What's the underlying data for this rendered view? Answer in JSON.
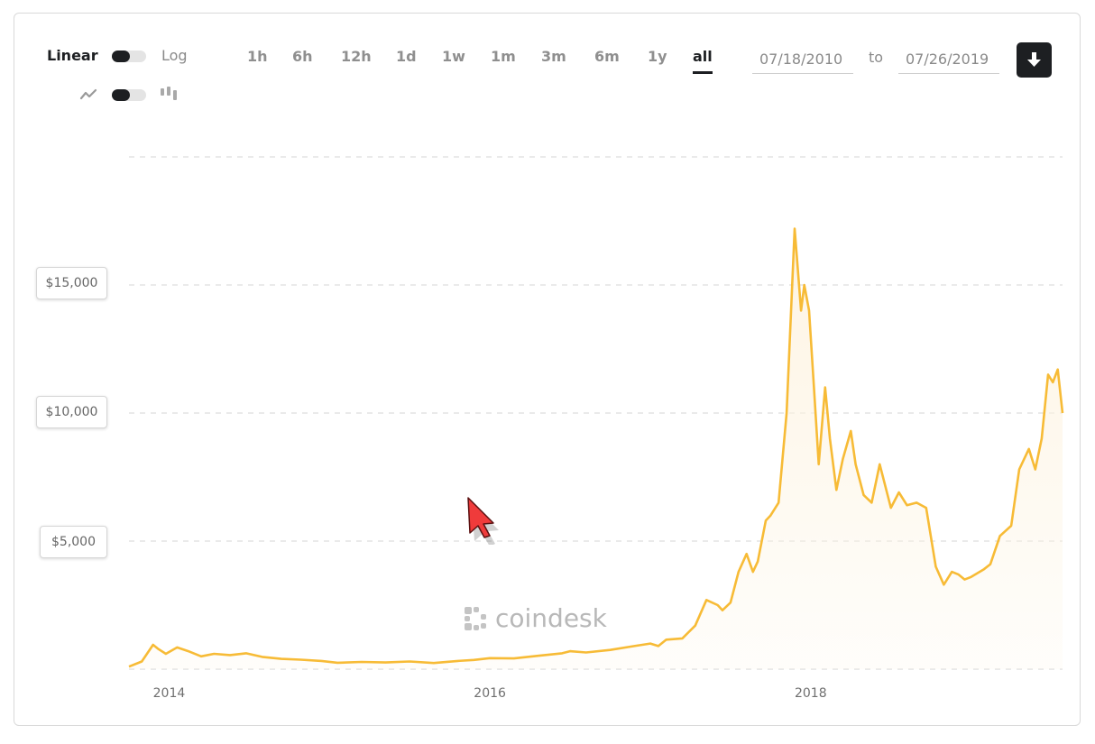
{
  "controls": {
    "scale_linear": "Linear",
    "scale_log": "Log",
    "ranges": [
      "1h",
      "6h",
      "12h",
      "1d",
      "1w",
      "1m",
      "3m",
      "6m",
      "1y",
      "all"
    ],
    "active_range": "all",
    "date_from": "07/18/2010",
    "to_label": "to",
    "date_to": "07/26/2019"
  },
  "watermark": "coindesk",
  "colors": {
    "line": "#f7bb36",
    "fill": "#fdf3e0",
    "text": "#1d1f22"
  },
  "chart_data": {
    "type": "area",
    "title": "",
    "xlabel": "",
    "ylabel": "",
    "x_ticks": [
      "2014",
      "2016",
      "2018"
    ],
    "y_ticks": [
      "$5,000",
      "$10,000",
      "$15,000"
    ],
    "y_tick_values": [
      5000,
      10000,
      15000
    ],
    "ylim": [
      0,
      20000
    ],
    "xlim": [
      2013.75,
      2019.57
    ],
    "grid": true,
    "series": [
      {
        "x": [
          2013.75,
          2013.83,
          2013.9,
          2013.93,
          2013.98,
          2014.05,
          2014.12,
          2014.2,
          2014.28,
          2014.38,
          2014.48,
          2014.58,
          2014.7,
          2014.82,
          2014.95,
          2015.05,
          2015.2,
          2015.35,
          2015.5,
          2015.65,
          2015.8,
          2015.9,
          2016.0,
          2016.15,
          2016.3,
          2016.45,
          2016.5,
          2016.6,
          2016.75,
          2016.9,
          2017.0,
          2017.05,
          2017.1,
          2017.2,
          2017.28,
          2017.35,
          2017.42,
          2017.45,
          2017.5,
          2017.55,
          2017.6,
          2017.64,
          2017.67,
          2017.72,
          2017.75,
          2017.8,
          2017.85,
          2017.9,
          2017.94,
          2017.96,
          2017.99,
          2018.02,
          2018.05,
          2018.09,
          2018.12,
          2018.16,
          2018.2,
          2018.25,
          2018.28,
          2018.33,
          2018.38,
          2018.43,
          2018.5,
          2018.55,
          2018.6,
          2018.66,
          2018.72,
          2018.78,
          2018.83,
          2018.88,
          2018.92,
          2018.96,
          2019.0,
          2019.08,
          2019.12,
          2019.18,
          2019.25,
          2019.3,
          2019.36,
          2019.4,
          2019.44,
          2019.48,
          2019.51,
          2019.54,
          2019.57
        ],
        "y": [
          100,
          300,
          950,
          800,
          600,
          850,
          700,
          500,
          600,
          550,
          620,
          480,
          400,
          370,
          320,
          250,
          280,
          260,
          300,
          240,
          320,
          360,
          430,
          420,
          520,
          620,
          700,
          650,
          750,
          900,
          1000,
          900,
          1150,
          1200,
          1700,
          2700,
          2500,
          2300,
          2600,
          3800,
          4500,
          3800,
          4200,
          5800,
          6000,
          6500,
          10000,
          17200,
          14000,
          15000,
          14000,
          11000,
          8000,
          11000,
          9000,
          7000,
          8200,
          9300,
          8000,
          6800,
          6500,
          8000,
          6300,
          6900,
          6400,
          6500,
          6300,
          4000,
          3300,
          3800,
          3700,
          3500,
          3600,
          3900,
          4100,
          5200,
          5600,
          7800,
          8600,
          7800,
          9000,
          11500,
          11200,
          11700,
          10000
        ]
      }
    ]
  }
}
